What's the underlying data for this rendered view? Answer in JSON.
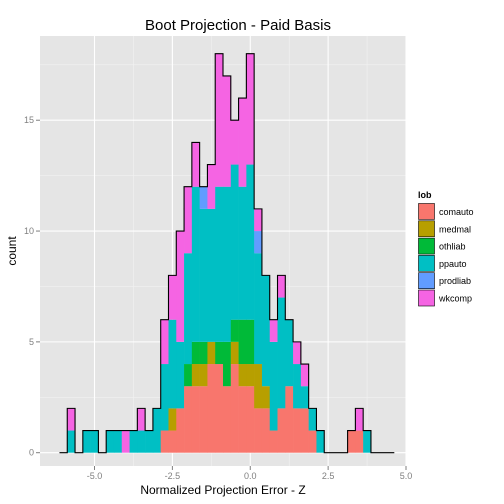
{
  "chart_data": {
    "type": "bar",
    "subtype": "stacked-histogram",
    "title": "Boot Projection - Paid Basis",
    "xlabel": "Normalized Projection Error - Z",
    "ylabel": "count",
    "xlim": [
      -6.75,
      5.0
    ],
    "ylim": [
      -0.6,
      18.8
    ],
    "x_ticks": [
      -5.0,
      -2.5,
      0.0,
      2.5,
      5.0
    ],
    "x_tick_labels": [
      "-5.0",
      "-2.5",
      "0.0",
      "2.5",
      "5.0"
    ],
    "y_ticks": [
      0,
      5,
      10,
      15
    ],
    "y_tick_labels": [
      "0",
      "5",
      "10",
      "15"
    ],
    "grid": true,
    "legend": {
      "title": "lob",
      "position": "right"
    },
    "bin_width": 0.25,
    "bin_start": -6.125,
    "categories": [
      "-6.0",
      "-5.75",
      "-5.5",
      "-5.25",
      "-5.0",
      "-4.75",
      "-4.5",
      "-4.25",
      "-4.0",
      "-3.75",
      "-3.5",
      "-3.25",
      "-3.0",
      "-2.75",
      "-2.5",
      "-2.25",
      "-2.0",
      "-1.75",
      "-1.5",
      "-1.25",
      "-1.0",
      "-0.75",
      "-0.5",
      "-0.25",
      "0.0",
      "0.25",
      "0.5",
      "0.75",
      "1.0",
      "1.25",
      "1.5",
      "1.75",
      "2.0",
      "2.25",
      "2.5",
      "2.75",
      "3.0",
      "3.25",
      "3.5",
      "3.75",
      "4.0",
      "4.25",
      "4.5"
    ],
    "series": [
      {
        "name": "comauto",
        "color": "#F8766D",
        "values": [
          0,
          0,
          0,
          0,
          0,
          0,
          0,
          0,
          0,
          0,
          0,
          0,
          0,
          1,
          1,
          2,
          3,
          3,
          3,
          4,
          4,
          3,
          4,
          3,
          3,
          2,
          2,
          1,
          2,
          3,
          2,
          2,
          1,
          0,
          0,
          0,
          0,
          1,
          1,
          0,
          0,
          0,
          0
        ]
      },
      {
        "name": "medmal",
        "color": "#B79F00",
        "values": [
          0,
          0,
          0,
          0,
          0,
          0,
          0,
          0,
          0,
          0,
          0,
          0,
          0,
          0,
          1,
          0,
          0,
          1,
          1,
          1,
          0,
          0,
          1,
          1,
          1,
          2,
          1,
          0,
          0,
          0,
          0,
          0,
          0,
          0,
          0,
          0,
          0,
          0,
          0,
          0,
          0,
          0,
          0
        ]
      },
      {
        "name": "othliab",
        "color": "#00BA38",
        "values": [
          0,
          0,
          0,
          0,
          0,
          0,
          0,
          0,
          0,
          0,
          0,
          0,
          0,
          0,
          0,
          0,
          1,
          1,
          1,
          0,
          1,
          2,
          1,
          2,
          2,
          0,
          0,
          0,
          0,
          0,
          0,
          0,
          0,
          0,
          0,
          0,
          0,
          0,
          0,
          0,
          0,
          0,
          0
        ]
      },
      {
        "name": "ppauto",
        "color": "#00BFC4",
        "values": [
          0,
          1,
          0,
          1,
          1,
          0,
          1,
          1,
          0,
          1,
          1,
          1,
          2,
          3,
          4,
          3,
          5,
          7,
          6,
          6,
          7,
          7,
          7,
          6,
          7,
          5,
          5,
          4,
          5,
          3,
          2,
          1,
          1,
          1,
          0,
          0,
          0,
          0,
          0,
          1,
          0,
          0,
          0
        ]
      },
      {
        "name": "prodliab",
        "color": "#619CFF",
        "values": [
          0,
          0,
          0,
          0,
          0,
          0,
          0,
          0,
          0,
          0,
          0,
          0,
          0,
          0,
          0,
          0,
          0,
          0,
          1,
          0,
          0,
          0,
          0,
          0,
          0,
          1,
          0,
          0,
          0,
          0,
          0,
          0,
          0,
          0,
          0,
          0,
          0,
          0,
          0,
          0,
          0,
          0,
          0
        ]
      },
      {
        "name": "wkcomp",
        "color": "#F564E3",
        "values": [
          0,
          1,
          0,
          0,
          0,
          0,
          0,
          0,
          1,
          0,
          1,
          0,
          0,
          2,
          2,
          5,
          3,
          2,
          0,
          2,
          6,
          5,
          2,
          4,
          5,
          1,
          0,
          1,
          1,
          0,
          1,
          1,
          0,
          0,
          0,
          0,
          0,
          0,
          1,
          0,
          0,
          0,
          0
        ]
      }
    ]
  }
}
